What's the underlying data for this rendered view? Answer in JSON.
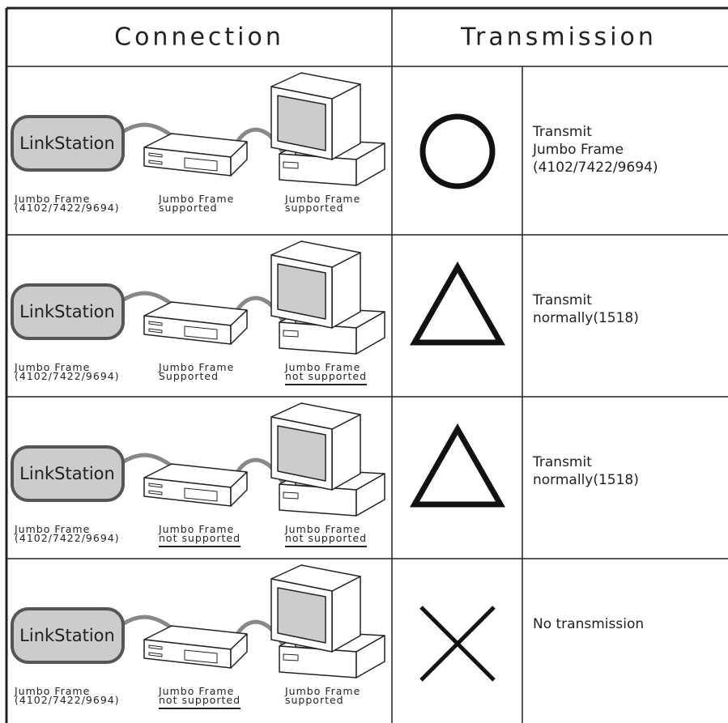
{
  "header": {
    "connection": "Connection",
    "transmission": "Transmission"
  },
  "rows": [
    {
      "device": "LinkStation",
      "linkstation": [
        "Jumbo Frame",
        "(4102/7422/9694)"
      ],
      "switch": [
        "Jumbo Frame",
        "supported"
      ],
      "pc": [
        "Jumbo Frame",
        "supported"
      ],
      "result": [
        "Transmit",
        "Jumbo Frame",
        "(4102/7422/9694)"
      ]
    },
    {
      "device": "LinkStation",
      "linkstation": [
        "Jumbo Frame",
        "(4102/7422/9694)"
      ],
      "switch": [
        "Jumbo Frame",
        "Supported"
      ],
      "pc": [
        "Jumbo Frame",
        "not supported"
      ],
      "result": [
        "Transmit",
        "normally(1518)"
      ]
    },
    {
      "device": "LinkStation",
      "linkstation": [
        "Jumbo Frame",
        "(4102/7422/9694)"
      ],
      "switch": [
        "Jumbo Frame",
        "not supported"
      ],
      "pc": [
        "Jumbo Frame",
        "not supported"
      ],
      "result": [
        "Transmit",
        "normally(1518)"
      ]
    },
    {
      "device": "LinkStation",
      "linkstation": [
        "Jumbo Frame",
        "(4102/7422/9694)"
      ],
      "switch": [
        "Jumbo Frame",
        "not supported"
      ],
      "pc": [
        "Jumbo Frame",
        "supported"
      ],
      "result": [
        "No  transmission"
      ]
    }
  ]
}
